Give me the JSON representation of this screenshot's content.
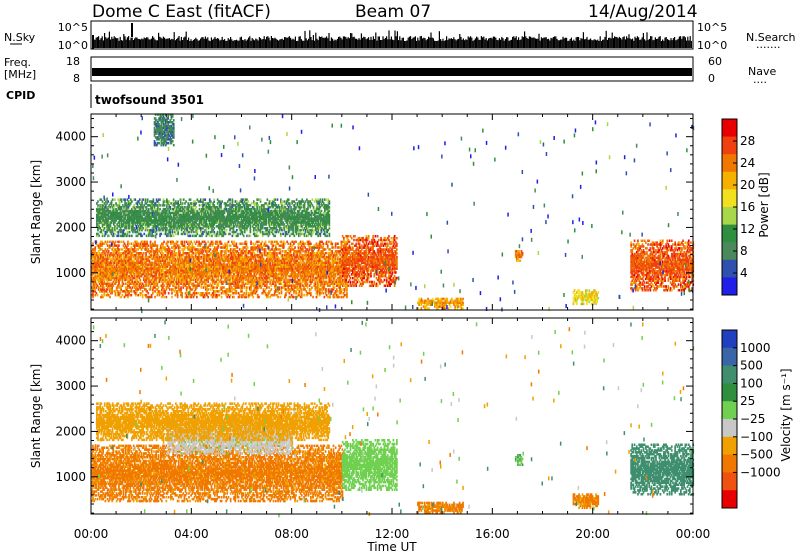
{
  "header": {
    "station": "Dome C East (fitACF)",
    "beam": "Beam 07",
    "date": "14/Aug/2014"
  },
  "strips": {
    "nsky": {
      "label": "N.Sky",
      "ticks_left": [
        "10^5",
        "10^0"
      ],
      "ticks_right": [
        "10^5",
        "10^0"
      ],
      "right_label": "N.Search",
      "right_dots": "......."
    },
    "freq": {
      "label_top": "Freq.",
      "label_bottom": "[MHz]",
      "ticks_left": [
        "18",
        "8"
      ],
      "ticks_right": [
        "60",
        "0"
      ],
      "right_label": "Nave",
      "right_dots": "...."
    },
    "cpid": {
      "label": "CPID",
      "program": "twofsound 3501"
    }
  },
  "colors": {
    "power_scale": [
      "#1f1fe8",
      "#3050b0",
      "#4a8a5a",
      "#2f8f3f",
      "#a8d84a",
      "#f2e020",
      "#f5b000",
      "#f07800",
      "#f04010",
      "#e80000"
    ],
    "velocity_scale": [
      "#2040c0",
      "#3a66a8",
      "#3f8f6f",
      "#2f8f3f",
      "#70d050",
      "#c8c8c8",
      "#f0a000",
      "#f07800",
      "#f05010",
      "#e80000"
    ]
  },
  "chart_data": [
    {
      "type": "heatmap",
      "panel": "power",
      "ylabel": "Slant Range [km]",
      "x_ticks": [
        "00:00",
        "04:00",
        "08:00",
        "12:00",
        "16:00",
        "20:00",
        "00:00"
      ],
      "x_range_hours": [
        0,
        24
      ],
      "y_ticks": [
        1000,
        2000,
        3000,
        4000
      ],
      "y_range_km": [
        180,
        4500
      ],
      "colorbar": {
        "label": "Power [dB]",
        "ticks": [
          "4",
          "8",
          "12",
          "16",
          "20",
          "24",
          "28"
        ],
        "range": [
          0,
          32
        ]
      },
      "regions": [
        {
          "t_start": 0.0,
          "t_end": 10.2,
          "r_low": 450,
          "r_high": 1700,
          "value": 24
        },
        {
          "t_start": 10.0,
          "t_end": 12.2,
          "r_low": 700,
          "r_high": 1800,
          "value": 26
        },
        {
          "t_start": 0.2,
          "t_end": 9.5,
          "r_low": 1800,
          "r_high": 2600,
          "value": 10
        },
        {
          "t_start": 2.5,
          "t_end": 3.3,
          "r_low": 3800,
          "r_high": 4500,
          "value": 8
        },
        {
          "t_start": 13.0,
          "t_end": 14.8,
          "r_low": 200,
          "r_high": 450,
          "value": 22
        },
        {
          "t_start": 16.9,
          "t_end": 17.2,
          "r_low": 1250,
          "r_high": 1500,
          "value": 24
        },
        {
          "t_start": 19.2,
          "t_end": 20.2,
          "r_low": 300,
          "r_high": 600,
          "value": 18
        },
        {
          "t_start": 21.5,
          "t_end": 24.0,
          "r_low": 600,
          "r_high": 1700,
          "value": 26
        }
      ]
    },
    {
      "type": "heatmap",
      "panel": "velocity",
      "ylabel": "Slant Range [km]",
      "xlabel": "Time UT",
      "x_ticks": [
        "00:00",
        "04:00",
        "08:00",
        "12:00",
        "16:00",
        "20:00",
        "00:00"
      ],
      "x_range_hours": [
        0,
        24
      ],
      "y_ticks": [
        1000,
        2000,
        3000,
        4000
      ],
      "y_range_km": [
        180,
        4500
      ],
      "colorbar": {
        "label": "Velocity [m s⁻¹]",
        "ticks": [
          "1000",
          "500",
          "100",
          "25",
          "−25",
          "−100",
          "−500",
          "−1000"
        ]
      },
      "regions": [
        {
          "t_start": 0.0,
          "t_end": 10.0,
          "r_low": 450,
          "r_high": 1700,
          "value": -150
        },
        {
          "t_start": 3.0,
          "t_end": 8.0,
          "r_low": 1500,
          "r_high": 2200,
          "value": 0
        },
        {
          "t_start": 10.0,
          "t_end": 12.2,
          "r_low": 700,
          "r_high": 1800,
          "value": 60
        },
        {
          "t_start": 0.2,
          "t_end": 9.5,
          "r_low": 1800,
          "r_high": 2600,
          "value": -60
        },
        {
          "t_start": 13.0,
          "t_end": 14.8,
          "r_low": 200,
          "r_high": 450,
          "value": -150
        },
        {
          "t_start": 16.9,
          "t_end": 17.2,
          "r_low": 1250,
          "r_high": 1500,
          "value": 80
        },
        {
          "t_start": 19.2,
          "t_end": 20.2,
          "r_low": 300,
          "r_high": 600,
          "value": -120
        },
        {
          "t_start": 21.5,
          "t_end": 24.0,
          "r_low": 600,
          "r_high": 1700,
          "value": 200
        }
      ]
    }
  ]
}
